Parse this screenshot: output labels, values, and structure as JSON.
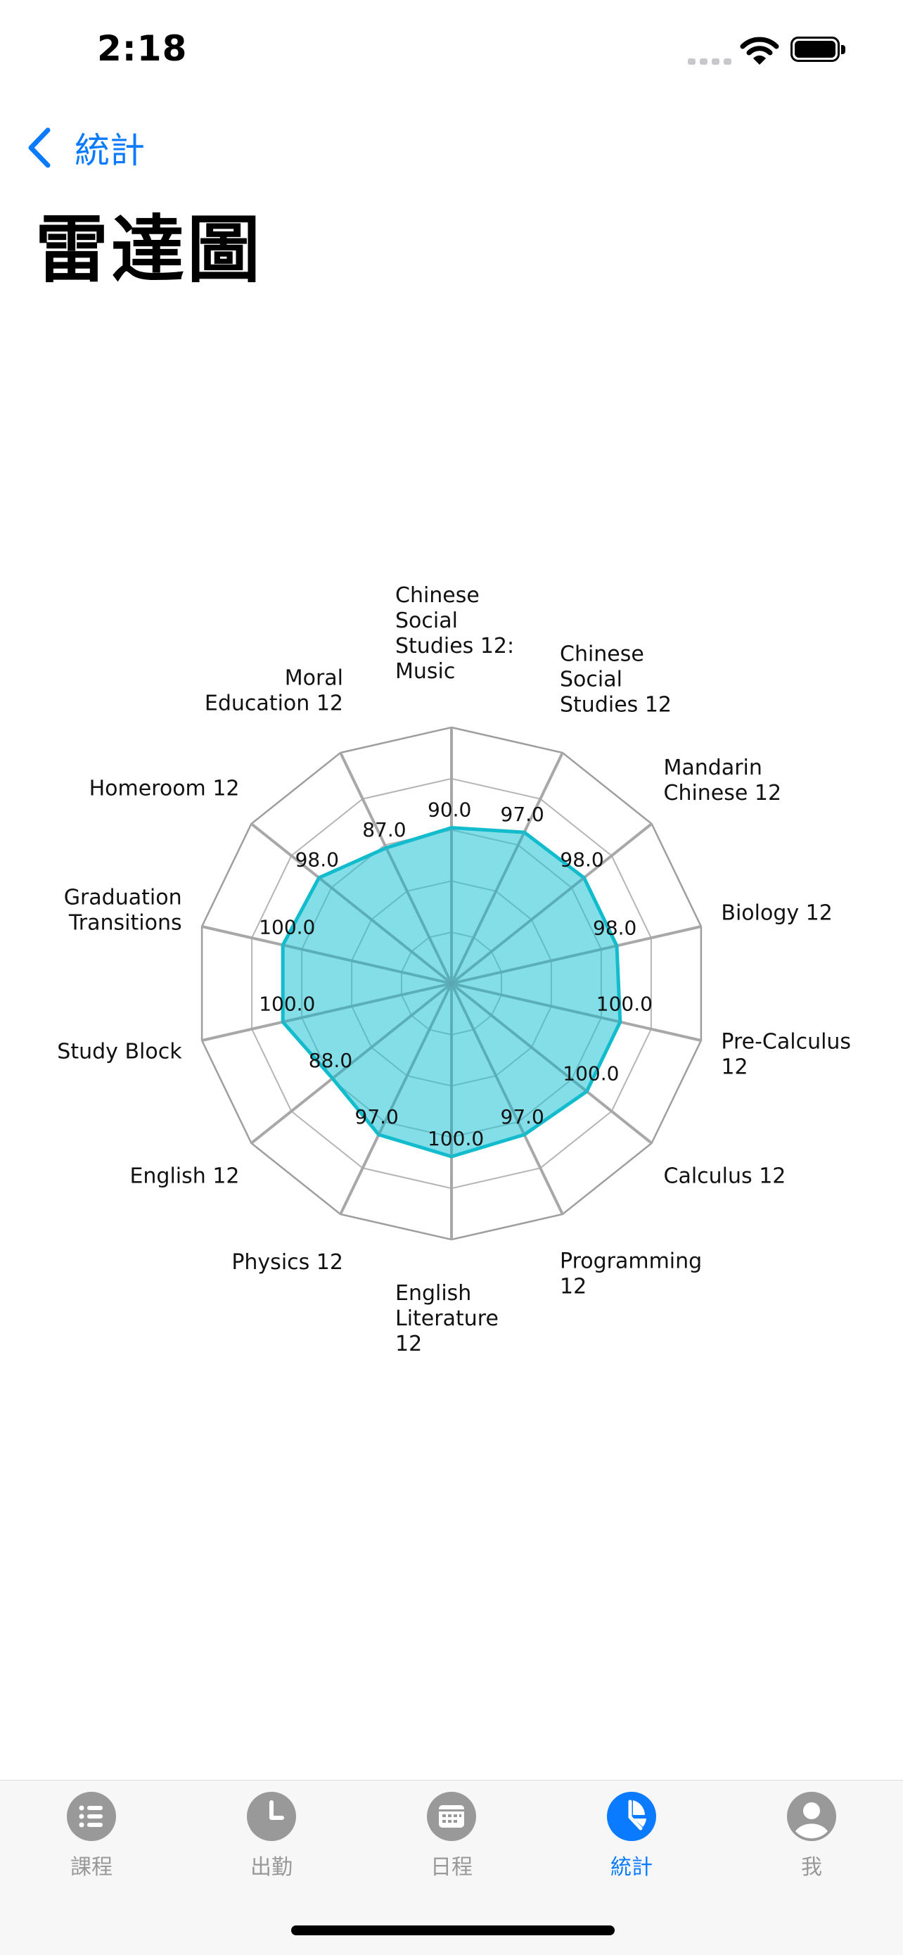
{
  "status_bar": {
    "time": "2:18"
  },
  "nav": {
    "back_label": "統計",
    "title": "雷達圖"
  },
  "chart_data": {
    "type": "radar",
    "rmax": 100,
    "rings": 5,
    "fill_color": "#1ec3d6",
    "stroke_color": "#12bccd",
    "axes": [
      {
        "label": "Chinese Social Studies 12: Music",
        "value": 90.0
      },
      {
        "label": "Chinese Social Studies 12",
        "value": 97.0
      },
      {
        "label": "Mandarin Chinese 12",
        "value": 98.0
      },
      {
        "label": "Biology 12",
        "value": 98.0
      },
      {
        "label": "Pre-Calculus 12",
        "value": 100.0
      },
      {
        "label": "Calculus 12",
        "value": 100.0
      },
      {
        "label": "Programming 12",
        "value": 97.0
      },
      {
        "label": "English Literature 12",
        "value": 100.0
      },
      {
        "label": "Physics 12",
        "value": 97.0
      },
      {
        "label": "English 12",
        "value": 88.0
      },
      {
        "label": "Study Block",
        "value": 100.0
      },
      {
        "label": "Graduation Transitions",
        "value": 100.0
      },
      {
        "label": "Homeroom 12",
        "value": 98.0
      },
      {
        "label": "Moral Education 12",
        "value": 87.0
      }
    ]
  },
  "tabs": [
    {
      "label": "課程",
      "icon": "list-icon",
      "active": false
    },
    {
      "label": "出勤",
      "icon": "clock-icon",
      "active": false
    },
    {
      "label": "日程",
      "icon": "calendar-icon",
      "active": false
    },
    {
      "label": "統計",
      "icon": "pie-chart-icon",
      "active": true
    },
    {
      "label": "我",
      "icon": "person-icon",
      "active": false
    }
  ],
  "colors": {
    "accent": "#0a7aff",
    "inactive": "#999999"
  }
}
